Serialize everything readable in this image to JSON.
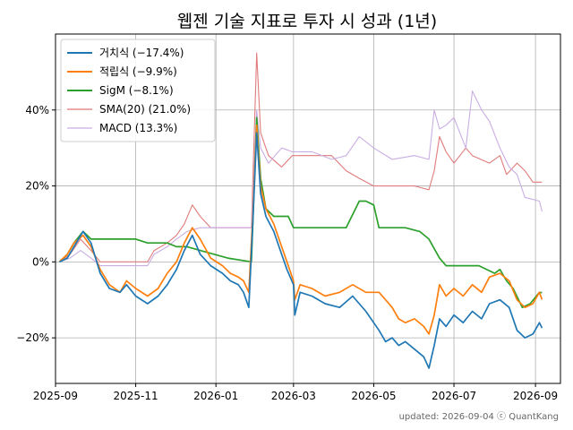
{
  "chart_data": {
    "type": "line",
    "title": "웹젠 기술 지표로 투자 시 성과 (1년)",
    "xlabel": "",
    "ylabel": "",
    "x_range": [
      "2025-09-01",
      "2026-09-20"
    ],
    "ylim": [
      -32,
      60
    ],
    "grid": true,
    "legend_position": "top-left",
    "x_ticks": [
      "2025-09",
      "2025-11",
      "2026-01",
      "2026-03",
      "2026-05",
      "2026-07",
      "2026-09"
    ],
    "y_ticks": [
      {
        "value": -20,
        "label": "−20%"
      },
      {
        "value": 0,
        "label": "0%"
      },
      {
        "value": 20,
        "label": "20%"
      },
      {
        "value": 40,
        "label": "40%"
      }
    ],
    "series": [
      {
        "name": "거치식 (−17.4%)",
        "color": "#1f77b4",
        "points": [
          [
            "2025-09-04",
            0
          ],
          [
            "2025-09-10",
            1
          ],
          [
            "2025-09-15",
            4
          ],
          [
            "2025-09-22",
            8
          ],
          [
            "2025-09-28",
            5
          ],
          [
            "2025-10-05",
            -3
          ],
          [
            "2025-10-12",
            -7
          ],
          [
            "2025-10-20",
            -8
          ],
          [
            "2025-10-25",
            -6
          ],
          [
            "2025-11-01",
            -9
          ],
          [
            "2025-11-10",
            -11
          ],
          [
            "2025-11-18",
            -9
          ],
          [
            "2025-11-25",
            -6
          ],
          [
            "2025-12-02",
            -2
          ],
          [
            "2025-12-08",
            3
          ],
          [
            "2025-12-14",
            7
          ],
          [
            "2025-12-20",
            2
          ],
          [
            "2025-12-28",
            -1
          ],
          [
            "2026-01-06",
            -3
          ],
          [
            "2026-01-12",
            -5
          ],
          [
            "2026-01-18",
            -6
          ],
          [
            "2026-01-22",
            -8
          ],
          [
            "2026-01-26",
            -12
          ],
          [
            "2026-01-29",
            10
          ],
          [
            "2026-02-01",
            34
          ],
          [
            "2026-02-04",
            18
          ],
          [
            "2026-02-08",
            12
          ],
          [
            "2026-02-14",
            8
          ],
          [
            "2026-02-20",
            2
          ],
          [
            "2026-02-24",
            -2
          ],
          [
            "2026-03-01",
            -6
          ],
          [
            "2026-03-02",
            -14
          ],
          [
            "2026-03-06",
            -8
          ],
          [
            "2026-03-15",
            -9
          ],
          [
            "2026-03-25",
            -11
          ],
          [
            "2026-04-05",
            -12
          ],
          [
            "2026-04-15",
            -9
          ],
          [
            "2026-04-25",
            -13
          ],
          [
            "2026-05-05",
            -18
          ],
          [
            "2026-05-10",
            -21
          ],
          [
            "2026-05-15",
            -20
          ],
          [
            "2026-05-20",
            -22
          ],
          [
            "2026-05-25",
            -21
          ],
          [
            "2026-06-01",
            -23
          ],
          [
            "2026-06-08",
            -25
          ],
          [
            "2026-06-12",
            -28
          ],
          [
            "2026-06-16",
            -22
          ],
          [
            "2026-06-20",
            -15
          ],
          [
            "2026-06-25",
            -17
          ],
          [
            "2026-07-01",
            -14
          ],
          [
            "2026-07-08",
            -16
          ],
          [
            "2026-07-15",
            -13
          ],
          [
            "2026-07-22",
            -15
          ],
          [
            "2026-07-28",
            -11
          ],
          [
            "2026-08-05",
            -10
          ],
          [
            "2026-08-12",
            -12
          ],
          [
            "2026-08-18",
            -18
          ],
          [
            "2026-08-24",
            -20
          ],
          [
            "2026-08-30",
            -19
          ],
          [
            "2026-09-04",
            -16
          ],
          [
            "2026-09-06",
            -17.4
          ]
        ]
      },
      {
        "name": "적립식 (−9.9%)",
        "color": "#ff7f0e",
        "points": [
          [
            "2025-09-04",
            0
          ],
          [
            "2025-09-10",
            2
          ],
          [
            "2025-09-15",
            5
          ],
          [
            "2025-09-22",
            7
          ],
          [
            "2025-09-28",
            4
          ],
          [
            "2025-10-05",
            -2
          ],
          [
            "2025-10-12",
            -6
          ],
          [
            "2025-10-20",
            -8
          ],
          [
            "2025-10-25",
            -5
          ],
          [
            "2025-11-01",
            -7
          ],
          [
            "2025-11-10",
            -9
          ],
          [
            "2025-11-18",
            -7
          ],
          [
            "2025-11-25",
            -3
          ],
          [
            "2025-12-02",
            0
          ],
          [
            "2025-12-08",
            5
          ],
          [
            "2025-12-14",
            9
          ],
          [
            "2025-12-20",
            6
          ],
          [
            "2025-12-28",
            1
          ],
          [
            "2026-01-06",
            -1
          ],
          [
            "2026-01-12",
            -3
          ],
          [
            "2026-01-18",
            -4
          ],
          [
            "2026-01-22",
            -5
          ],
          [
            "2026-01-26",
            -8
          ],
          [
            "2026-01-29",
            12
          ],
          [
            "2026-02-01",
            36
          ],
          [
            "2026-02-04",
            20
          ],
          [
            "2026-02-08",
            14
          ],
          [
            "2026-02-14",
            10
          ],
          [
            "2026-02-20",
            4
          ],
          [
            "2026-02-24",
            0
          ],
          [
            "2026-03-01",
            -5
          ],
          [
            "2026-03-02",
            -10
          ],
          [
            "2026-03-06",
            -6
          ],
          [
            "2026-03-15",
            -7
          ],
          [
            "2026-03-25",
            -9
          ],
          [
            "2026-04-05",
            -8
          ],
          [
            "2026-04-15",
            -6
          ],
          [
            "2026-04-25",
            -8
          ],
          [
            "2026-05-05",
            -8
          ],
          [
            "2026-05-10",
            -10
          ],
          [
            "2026-05-15",
            -12
          ],
          [
            "2026-05-20",
            -15
          ],
          [
            "2026-05-25",
            -16
          ],
          [
            "2026-06-01",
            -15
          ],
          [
            "2026-06-08",
            -17
          ],
          [
            "2026-06-12",
            -19
          ],
          [
            "2026-06-16",
            -14
          ],
          [
            "2026-06-20",
            -6
          ],
          [
            "2026-06-25",
            -9
          ],
          [
            "2026-07-01",
            -7
          ],
          [
            "2026-07-08",
            -9
          ],
          [
            "2026-07-15",
            -6
          ],
          [
            "2026-07-22",
            -8
          ],
          [
            "2026-07-28",
            -4
          ],
          [
            "2026-08-05",
            -3
          ],
          [
            "2026-08-12",
            -5
          ],
          [
            "2026-08-18",
            -10
          ],
          [
            "2026-08-24",
            -12
          ],
          [
            "2026-08-30",
            -11
          ],
          [
            "2026-09-04",
            -8
          ],
          [
            "2026-09-06",
            -9.9
          ]
        ]
      },
      {
        "name": "SigM (−8.1%)",
        "color": "#2ca02c",
        "points": [
          [
            "2025-09-04",
            0
          ],
          [
            "2025-09-10",
            2
          ],
          [
            "2025-09-15",
            5
          ],
          [
            "2025-09-22",
            8
          ],
          [
            "2025-09-28",
            6
          ],
          [
            "2025-10-10",
            6
          ],
          [
            "2025-11-01",
            6
          ],
          [
            "2025-11-10",
            5
          ],
          [
            "2025-11-25",
            5
          ],
          [
            "2025-12-02",
            4
          ],
          [
            "2025-12-10",
            4
          ],
          [
            "2025-12-20",
            3
          ],
          [
            "2026-01-10",
            1
          ],
          [
            "2026-01-28",
            0
          ],
          [
            "2026-02-01",
            38
          ],
          [
            "2026-02-04",
            22
          ],
          [
            "2026-02-08",
            14
          ],
          [
            "2026-02-14",
            12
          ],
          [
            "2026-02-20",
            12
          ],
          [
            "2026-02-25",
            12
          ],
          [
            "2026-03-01",
            9
          ],
          [
            "2026-03-15",
            9
          ],
          [
            "2026-04-10",
            9
          ],
          [
            "2026-04-20",
            16
          ],
          [
            "2026-04-25",
            16
          ],
          [
            "2026-05-01",
            15
          ],
          [
            "2026-05-05",
            9
          ],
          [
            "2026-05-25",
            9
          ],
          [
            "2026-06-05",
            8
          ],
          [
            "2026-06-12",
            6
          ],
          [
            "2026-06-20",
            1
          ],
          [
            "2026-06-25",
            -1
          ],
          [
            "2026-07-01",
            -1
          ],
          [
            "2026-07-20",
            -1
          ],
          [
            "2026-08-01",
            -3
          ],
          [
            "2026-08-05",
            -2
          ],
          [
            "2026-08-10",
            -5
          ],
          [
            "2026-08-15",
            -7
          ],
          [
            "2026-08-22",
            -12
          ],
          [
            "2026-08-28",
            -11
          ],
          [
            "2026-09-04",
            -8
          ],
          [
            "2026-09-06",
            -8.1
          ]
        ]
      },
      {
        "name": "SMA(20) (21.0%)",
        "color": "#e07b7b",
        "points": [
          [
            "2025-09-04",
            0
          ],
          [
            "2025-09-12",
            2
          ],
          [
            "2025-09-20",
            6
          ],
          [
            "2025-09-28",
            3
          ],
          [
            "2025-10-05",
            0
          ],
          [
            "2025-10-20",
            0
          ],
          [
            "2025-11-10",
            0
          ],
          [
            "2025-11-15",
            3
          ],
          [
            "2025-11-25",
            5
          ],
          [
            "2025-12-02",
            7
          ],
          [
            "2025-12-08",
            10
          ],
          [
            "2025-12-14",
            15
          ],
          [
            "2025-12-20",
            12
          ],
          [
            "2025-12-28",
            9
          ],
          [
            "2026-01-10",
            9
          ],
          [
            "2026-01-28",
            9
          ],
          [
            "2026-02-01",
            55
          ],
          [
            "2026-02-04",
            34
          ],
          [
            "2026-02-10",
            28
          ],
          [
            "2026-02-20",
            25
          ],
          [
            "2026-02-28",
            28
          ],
          [
            "2026-03-15",
            28
          ],
          [
            "2026-03-30",
            28
          ],
          [
            "2026-04-10",
            24
          ],
          [
            "2026-04-20",
            22
          ],
          [
            "2026-05-01",
            20
          ],
          [
            "2026-05-15",
            20
          ],
          [
            "2026-06-01",
            20
          ],
          [
            "2026-06-12",
            19
          ],
          [
            "2026-06-16",
            24
          ],
          [
            "2026-06-20",
            33
          ],
          [
            "2026-06-25",
            29
          ],
          [
            "2026-07-01",
            26
          ],
          [
            "2026-07-10",
            30
          ],
          [
            "2026-07-15",
            28
          ],
          [
            "2026-07-28",
            26
          ],
          [
            "2026-08-05",
            28
          ],
          [
            "2026-08-10",
            23
          ],
          [
            "2026-08-18",
            26
          ],
          [
            "2026-08-24",
            24
          ],
          [
            "2026-08-30",
            21
          ],
          [
            "2026-09-06",
            21
          ]
        ]
      },
      {
        "name": "MACD (13.3%)",
        "color": "#c9aee3",
        "points": [
          [
            "2025-09-04",
            0
          ],
          [
            "2025-09-12",
            1
          ],
          [
            "2025-09-20",
            3
          ],
          [
            "2025-09-28",
            1
          ],
          [
            "2025-10-05",
            -1
          ],
          [
            "2025-10-20",
            -1
          ],
          [
            "2025-11-10",
            -1
          ],
          [
            "2025-11-15",
            2
          ],
          [
            "2025-11-25",
            4
          ],
          [
            "2025-12-02",
            6
          ],
          [
            "2025-12-10",
            8
          ],
          [
            "2025-12-20",
            9
          ],
          [
            "2026-01-10",
            9
          ],
          [
            "2026-01-28",
            9
          ],
          [
            "2026-02-01",
            40
          ],
          [
            "2026-02-04",
            30
          ],
          [
            "2026-02-10",
            26
          ],
          [
            "2026-02-20",
            30
          ],
          [
            "2026-02-28",
            29
          ],
          [
            "2026-03-15",
            29
          ],
          [
            "2026-03-30",
            27
          ],
          [
            "2026-04-10",
            28
          ],
          [
            "2026-04-20",
            33
          ],
          [
            "2026-05-01",
            30
          ],
          [
            "2026-05-15",
            27
          ],
          [
            "2026-06-01",
            28
          ],
          [
            "2026-06-12",
            27
          ],
          [
            "2026-06-16",
            40
          ],
          [
            "2026-06-20",
            35
          ],
          [
            "2026-06-25",
            36
          ],
          [
            "2026-07-01",
            38
          ],
          [
            "2026-07-10",
            30
          ],
          [
            "2026-07-15",
            45
          ],
          [
            "2026-07-22",
            40
          ],
          [
            "2026-07-28",
            37
          ],
          [
            "2026-08-05",
            30
          ],
          [
            "2026-08-12",
            25
          ],
          [
            "2026-08-18",
            23
          ],
          [
            "2026-08-24",
            17
          ],
          [
            "2026-09-04",
            16
          ],
          [
            "2026-09-06",
            13.3
          ]
        ]
      }
    ]
  },
  "footer": "updated: 2026-09-04 ⓒ QuantKang"
}
